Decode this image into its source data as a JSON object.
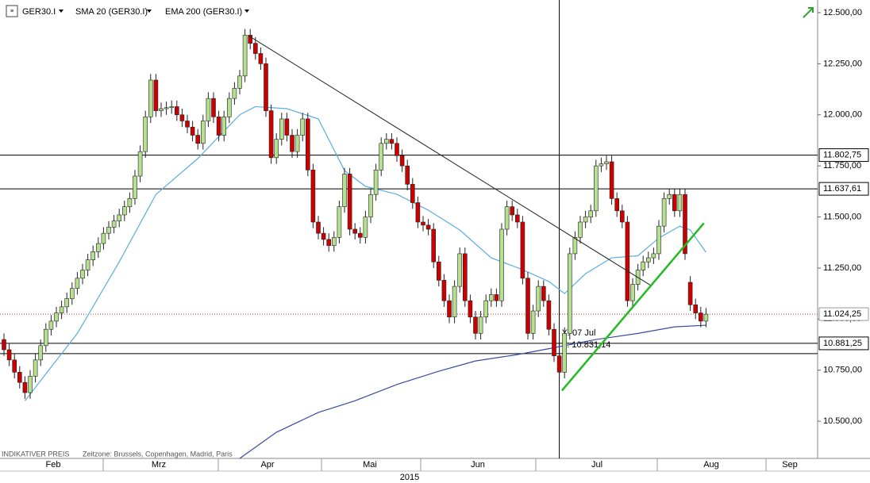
{
  "chart_data": {
    "type": "candlestick",
    "title": "GER30.I",
    "up_color": "#b5e08f",
    "down_color": "#cc0000",
    "open": [
      10900,
      10850,
      10800,
      10740,
      10690,
      10640,
      10720,
      10800,
      10870,
      10950,
      10990,
      11030,
      11060,
      11100,
      11150,
      11200,
      11240,
      11290,
      11330,
      11370,
      11420,
      11450,
      11480,
      11510,
      11550,
      11590,
      11700,
      11820,
      11990,
      12170,
      12020,
      12030,
      12035,
      12040,
      12000,
      11970,
      11940,
      11900,
      11860,
      11970,
      12080,
      11990,
      11900,
      11990,
      12080,
      12130,
      12190,
      12390,
      12350,
      12300,
      12250,
      12020,
      11790,
      11880,
      11980,
      11900,
      11820,
      11900,
      11980,
      11730,
      11475,
      11420,
      11390,
      11360,
      11400,
      11550,
      11710,
      11440,
      11420,
      11400,
      11500,
      11610,
      11730,
      11860,
      11880,
      11860,
      11800,
      11750,
      11660,
      11570,
      11475,
      11460,
      11440,
      11280,
      11190,
      11090,
      11010,
      11160,
      11320,
      11090,
      11010,
      10930,
      11010,
      11090,
      11120,
      11090,
      11440,
      11550,
      11510,
      11475,
      11200,
      10930,
      11040,
      11160,
      11090,
      10950,
      10820,
      10740,
      10930,
      11320,
      11400,
      11475,
      11500,
      11530,
      11750,
      11760,
      11770,
      11590,
      11530,
      11475,
      11090,
      11170,
      11240,
      11280,
      11300,
      11320,
      11455,
      11590,
      11610,
      11530,
      11610,
      11180,
      11070,
      11030,
      10990
    ],
    "high": [
      10930,
      10880,
      10830,
      10770,
      10720,
      10750,
      10830,
      10900,
      10980,
      11020,
      11060,
      11090,
      11130,
      11180,
      11230,
      11270,
      11320,
      11360,
      11400,
      11450,
      11480,
      11510,
      11540,
      11580,
      11620,
      11730,
      11850,
      12020,
      12200,
      12200,
      12060,
      12065,
      12070,
      12070,
      12030,
      12000,
      11970,
      11930,
      12000,
      12110,
      12110,
      12020,
      12020,
      12110,
      12160,
      12220,
      12420,
      12420,
      12380,
      12330,
      12280,
      12050,
      11910,
      12010,
      12010,
      11930,
      11930,
      12010,
      12010,
      11760,
      11505,
      11450,
      11420,
      11430,
      11580,
      11740,
      11740,
      11470,
      11450,
      11530,
      11640,
      11760,
      11890,
      11910,
      11910,
      11890,
      11830,
      11780,
      11690,
      11600,
      11505,
      11490,
      11470,
      11310,
      11220,
      11120,
      11190,
      11350,
      11350,
      11120,
      11040,
      11040,
      11120,
      11150,
      11150,
      11470,
      11580,
      11580,
      11540,
      11505,
      11230,
      11070,
      11190,
      11190,
      11120,
      10980,
      10850,
      10960,
      11350,
      11430,
      11505,
      11530,
      11560,
      11780,
      11790,
      11800,
      11800,
      11620,
      11560,
      11505,
      11200,
      11270,
      11310,
      11330,
      11350,
      11485,
      11620,
      11640,
      11640,
      11640,
      11640,
      11210,
      11100,
      11060,
      11054
    ],
    "low": [
      10820,
      10770,
      10710,
      10660,
      10610,
      10610,
      10690,
      10770,
      10840,
      10920,
      10960,
      11000,
      11030,
      11070,
      11120,
      11170,
      11210,
      11260,
      11300,
      11340,
      11390,
      11420,
      11450,
      11480,
      11520,
      11560,
      11670,
      11790,
      11960,
      11990,
      11990,
      12000,
      12005,
      11970,
      11940,
      11910,
      11870,
      11830,
      11830,
      11940,
      11960,
      11870,
      11870,
      11960,
      12050,
      12100,
      12160,
      12320,
      12270,
      12220,
      11990,
      11760,
      11760,
      11850,
      11870,
      11790,
      11790,
      11870,
      11700,
      11445,
      11390,
      11360,
      11330,
      11330,
      11370,
      11520,
      11410,
      11390,
      11370,
      11370,
      11470,
      11580,
      11700,
      11830,
      11830,
      11770,
      11720,
      11630,
      11540,
      11445,
      11430,
      11410,
      11250,
      11160,
      11060,
      10980,
      10980,
      11130,
      11060,
      10980,
      10900,
      10900,
      10980,
      11060,
      11060,
      11060,
      11410,
      11480,
      11445,
      11170,
      10900,
      10900,
      11010,
      11060,
      10920,
      10790,
      10710,
      10710,
      10900,
      11290,
      11370,
      11445,
      11470,
      11500,
      11720,
      11730,
      11560,
      11500,
      11445,
      11060,
      11060,
      11140,
      11210,
      11250,
      11270,
      11290,
      11425,
      11560,
      11500,
      11500,
      11290,
      11040,
      11000,
      10960,
      10960
    ],
    "close": [
      10850,
      10800,
      10740,
      10690,
      10640,
      10720,
      10800,
      10870,
      10950,
      10990,
      11030,
      11060,
      11100,
      11150,
      11200,
      11240,
      11290,
      11330,
      11370,
      11420,
      11450,
      11480,
      11510,
      11550,
      11590,
      11700,
      11820,
      11990,
      12170,
      12020,
      12030,
      12035,
      12040,
      12000,
      11970,
      11940,
      11900,
      11860,
      11970,
      12080,
      11990,
      11900,
      11990,
      12080,
      12130,
      12190,
      12390,
      12350,
      12300,
      12250,
      12020,
      11790,
      11880,
      11980,
      11900,
      11820,
      11900,
      11980,
      11730,
      11475,
      11420,
      11390,
      11360,
      11400,
      11550,
      11710,
      11440,
      11420,
      11400,
      11500,
      11610,
      11730,
      11860,
      11880,
      11860,
      11800,
      11750,
      11660,
      11570,
      11475,
      11460,
      11440,
      11280,
      11190,
      11090,
      11010,
      11160,
      11320,
      11090,
      11010,
      10930,
      11010,
      11090,
      11120,
      11090,
      11440,
      11550,
      11510,
      11475,
      11200,
      10930,
      11040,
      11160,
      11090,
      10950,
      10820,
      10740,
      10930,
      11320,
      11400,
      11475,
      11500,
      11530,
      11750,
      11760,
      11770,
      11590,
      11530,
      11475,
      11090,
      11170,
      11240,
      11280,
      11300,
      11320,
      11455,
      11590,
      11610,
      11530,
      11610,
      11320,
      11070,
      11030,
      10990,
      11024
    ],
    "lines": [
      {
        "name": "SMA 20 (GER30.I)",
        "color": "#5aaee0",
        "x": [
          4,
          14,
          22,
          29,
          37,
          45,
          48,
          54,
          60,
          65,
          69,
          75,
          81,
          87,
          93,
          99,
          104,
          107,
          111,
          116,
          121,
          125,
          129,
          131,
          134
        ],
        "values": [
          10600,
          10930,
          11280,
          11610,
          11786,
          12000,
          12040,
          12030,
          11980,
          11727,
          11650,
          11611,
          11533,
          11436,
          11300,
          11242,
          11184,
          11125,
          11222,
          11300,
          11310,
          11397,
          11455,
          11436,
          11327
        ]
      },
      {
        "name": "EMA 200 (GER30.I)",
        "color": "#3a4a9e",
        "x": [
          45,
          52,
          60,
          67,
          75,
          83,
          90,
          98,
          105,
          113,
          121,
          128,
          134
        ],
        "values": [
          10318,
          10446,
          10543,
          10600,
          10680,
          10745,
          10795,
          10826,
          10860,
          10900,
          10930,
          10962,
          10970
        ]
      }
    ],
    "trendlines": [
      {
        "color": "#222222",
        "x": [
          46.7,
          123.5
        ],
        "values": [
          12387,
          11164
        ]
      },
      {
        "color": "#22bb22",
        "x": [
          106.5,
          133.6
        ],
        "values": [
          10650,
          11470
        ]
      }
    ],
    "levels": [
      {
        "value": 11802.75,
        "label": "11.802,75"
      },
      {
        "value": 11637.61,
        "label": "11.637,61"
      },
      {
        "value": 10881.25,
        "label": "10.881,25"
      }
    ],
    "last_price": {
      "value": 11024.25,
      "label": "11.024,25"
    },
    "crosshair": {
      "x": 106,
      "y": 10831.14,
      "x_label": "X: 07 Jul",
      "y_label": "Y: 10.831,14"
    },
    "months": [
      "Feb",
      "Mrz",
      "Apr",
      "Mai",
      "Jun",
      "Jul",
      "Aug",
      "Sep"
    ],
    "year": "2015",
    "footer": [
      "INDIKATIVER PREIS",
      "Zeitzone: Brussels, Copenhagen, Madrid, Paris"
    ],
    "ylim": [
      10318,
      12562
    ],
    "yticks": [
      {
        "value": 10500,
        "label": "10.500,00"
      },
      {
        "value": 10750,
        "label": "10.750,00"
      },
      {
        "value": 11000,
        "label": "11.000,00"
      },
      {
        "value": 11250,
        "label": "11.250,00"
      },
      {
        "value": 11500,
        "label": "11.500,00"
      },
      {
        "value": 11750,
        "label": "11.750,00"
      },
      {
        "value": 12000,
        "label": "12.000,00"
      },
      {
        "value": 12250,
        "label": "12.250,00"
      },
      {
        "value": 12500,
        "label": "12.500,00"
      }
    ]
  }
}
